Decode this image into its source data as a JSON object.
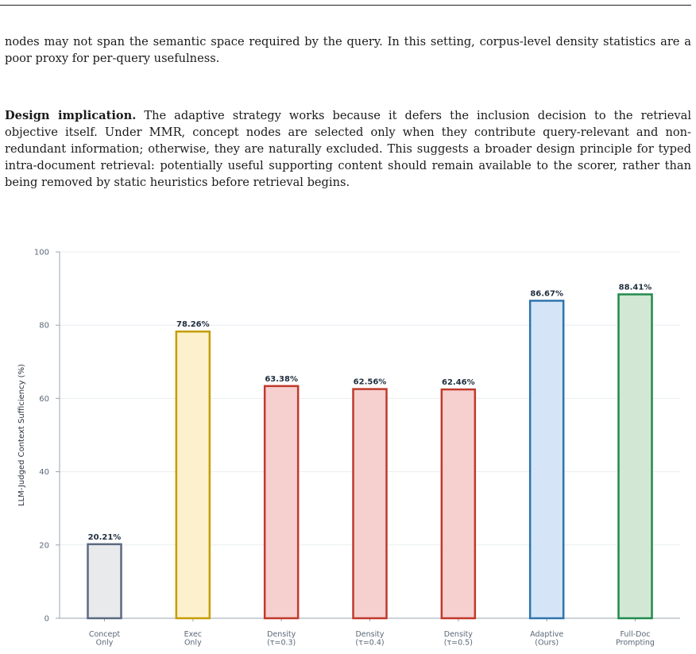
{
  "text": {
    "para1": "nodes may not span the semantic space required by the query. In this setting, corpus-level density statistics are a poor proxy for per-query usefulness.",
    "para2_heading": "Design implication.",
    "para2_body": "The adaptive strategy works because it defers the inclusion decision to the retrieval objective itself. Under MMR, concept nodes are selected only when they contribute query-relevant and non-redundant information; otherwise, they are naturally excluded. This suggests a broader design principle for typed intra-document retrieval: potentially useful supporting content should remain available to the scorer, rather than being removed by static heuristics before retrieval begins."
  },
  "chart_data": {
    "type": "bar",
    "ylabel": "LLM-Judged Context Sufficiency (%)",
    "xlabel": "",
    "ylim": [
      0,
      100
    ],
    "yticks": [
      0,
      20,
      40,
      60,
      80,
      100
    ],
    "grid": true,
    "categories": [
      [
        "Concept",
        "Only"
      ],
      [
        "Exec",
        "Only"
      ],
      [
        "Density",
        "(τ=0.3)"
      ],
      [
        "Density",
        "(τ=0.4)"
      ],
      [
        "Density",
        "(τ=0.5)"
      ],
      [
        "Adaptive",
        "(Ours)"
      ],
      [
        "Full-Doc",
        "Prompting"
      ]
    ],
    "values": [
      20.21,
      78.26,
      63.38,
      62.56,
      62.46,
      86.67,
      88.41
    ],
    "value_labels": [
      "20.21%",
      "78.26%",
      "63.38%",
      "62.56%",
      "62.46%",
      "86.67%",
      "88.41%"
    ],
    "fill_colors": [
      "#e9eaec",
      "#fdf1cd",
      "#f6cfcf",
      "#f6cfcf",
      "#f6cfcf",
      "#d5e5f7",
      "#d3e8d4"
    ],
    "edge_colors": [
      "#5a6b80",
      "#c49d00",
      "#c0392b",
      "#c0392b",
      "#c0392b",
      "#2e74ae",
      "#1f8a4c"
    ]
  }
}
